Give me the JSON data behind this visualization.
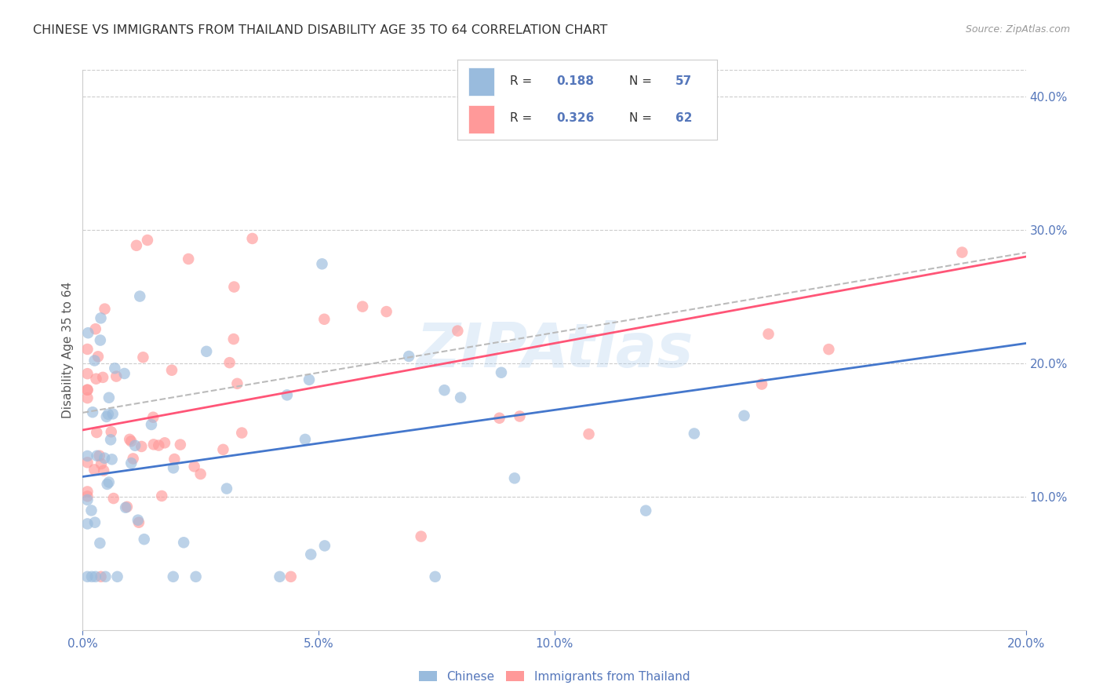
{
  "title": "CHINESE VS IMMIGRANTS FROM THAILAND DISABILITY AGE 35 TO 64 CORRELATION CHART",
  "source": "Source: ZipAtlas.com",
  "ylabel": "Disability Age 35 to 64",
  "watermark": "ZIPAtlas",
  "xlim": [
    0.0,
    0.2
  ],
  "ylim": [
    0.0,
    0.42
  ],
  "xticks": [
    0.0,
    0.05,
    0.1,
    0.2
  ],
  "xtick_labels": [
    "0.0%",
    "5.0%",
    "10.0%",
    "20.0%"
  ],
  "yticks": [
    0.1,
    0.2,
    0.3,
    0.4
  ],
  "ytick_labels": [
    "10.0%",
    "20.0%",
    "30.0%",
    "40.0%"
  ],
  "chinese_color": "#99BBDD",
  "thailand_color": "#FF9999",
  "line_chinese_color": "#4477CC",
  "line_thailand_color": "#FF5577",
  "dash_color": "#BBBBBB",
  "background_color": "#FFFFFF",
  "grid_color": "#CCCCCC",
  "axis_color": "#5577BB",
  "title_color": "#333333",
  "watermark_color": "#AACCEE",
  "chinese_intercept": 0.115,
  "chinese_slope": 0.5,
  "thailand_intercept": 0.15,
  "thailand_slope": 0.65,
  "dash_intercept": 0.163,
  "dash_slope": 0.6
}
